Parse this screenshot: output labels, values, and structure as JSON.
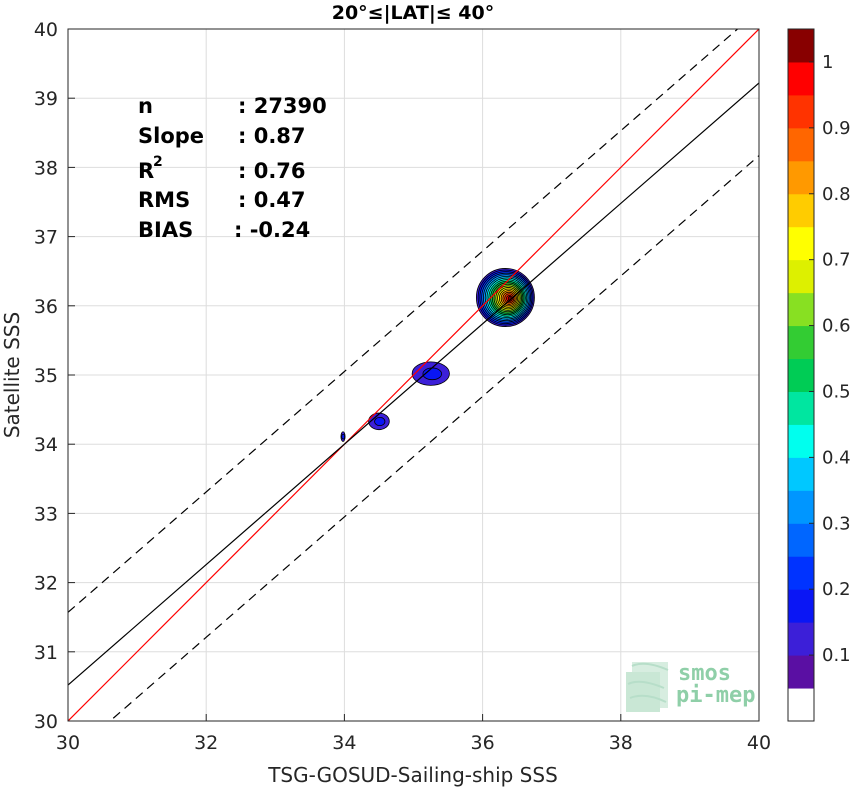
{
  "chart_data": {
    "type": "scatter",
    "title": "20°≤|LAT|≤ 40°",
    "xlabel": "TSG-GOSUD-Sailing-ship SSS",
    "ylabel": "Satellite SSS",
    "xlim": [
      30,
      40
    ],
    "ylim": [
      30,
      40
    ],
    "xticks": [
      "30",
      "32",
      "34",
      "36",
      "38",
      "40"
    ],
    "yticks": [
      "30",
      "31",
      "32",
      "33",
      "34",
      "35",
      "36",
      "37",
      "38",
      "39",
      "40"
    ],
    "grid": true,
    "stats": [
      {
        "label": "n",
        "value": ": 27390"
      },
      {
        "label": "Slope",
        "value": ": 0.87"
      },
      {
        "label": "R",
        "sup": "2",
        "value": ": 0.76"
      },
      {
        "label": "RMS",
        "value": ": 0.47"
      },
      {
        "label": "BIAS",
        "value": ": -0.24"
      }
    ],
    "lines": {
      "identity": {
        "x": [
          30,
          40
        ],
        "y": [
          30,
          40
        ],
        "color": "#ff0000"
      },
      "fit": {
        "x": [
          30,
          40
        ],
        "y": [
          30.52,
          39.22
        ],
        "color": "#000000"
      },
      "fit_upper": {
        "x": [
          30,
          40
        ],
        "y": [
          31.57,
          40.27
        ],
        "color": "#000000",
        "dash": true
      },
      "fit_lower": {
        "x": [
          30,
          40
        ],
        "y": [
          29.47,
          38.17
        ],
        "color": "#000000",
        "dash": true
      }
    },
    "density_blobs": [
      {
        "cx": 36.33,
        "cy": 36.12,
        "rx": 0.42,
        "ry": 0.42,
        "peak": 1.0
      },
      {
        "cx": 35.25,
        "cy": 35.02,
        "rx": 0.27,
        "ry": 0.17,
        "peak": 0.15
      },
      {
        "cx": 34.5,
        "cy": 34.33,
        "rx": 0.15,
        "ry": 0.12,
        "peak": 0.15
      },
      {
        "cx": 33.98,
        "cy": 34.11,
        "rx": 0.03,
        "ry": 0.07,
        "peak": 0.15
      }
    ],
    "colorbar": {
      "ticks": [
        "0.1",
        "0.2",
        "0.3",
        "0.4",
        "0.5",
        "0.6",
        "0.7",
        "0.8",
        "0.9",
        "1"
      ],
      "levels": [
        0.05,
        0.1,
        0.15,
        0.2,
        0.25,
        0.3,
        0.35,
        0.4,
        0.45,
        0.5,
        0.55,
        0.6,
        0.65,
        0.7,
        0.75,
        0.8,
        0.85,
        0.9,
        0.95,
        1.0
      ],
      "colors": [
        "#ffffff",
        "#5a0fa3",
        "#3c1fd8",
        "#0a16f5",
        "#0033ff",
        "#0066ff",
        "#0096ff",
        "#00c8ff",
        "#00ffee",
        "#00e6a0",
        "#00cc55",
        "#33cc33",
        "#88e022",
        "#ddf000",
        "#ffff00",
        "#ffcc00",
        "#ff9900",
        "#ff6600",
        "#ff3300",
        "#ff0000",
        "#880000"
      ]
    }
  },
  "logo": {
    "line1": "smos",
    "line2": "pi-mep"
  }
}
